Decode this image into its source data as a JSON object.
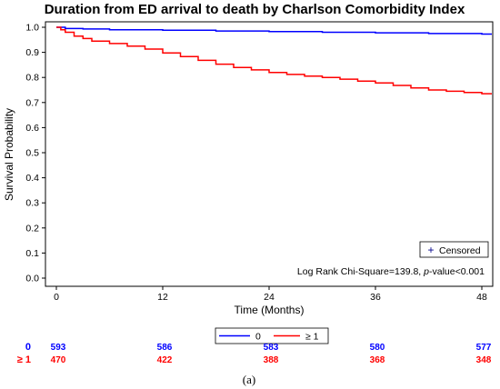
{
  "chart_data": {
    "type": "line",
    "title": "Duration from ED arrival to death by Charlson Comorbidity Index",
    "xlabel": "Time (Months)",
    "ylabel": "Survival Probability",
    "xlim": [
      0,
      48
    ],
    "ylim": [
      0,
      1.0
    ],
    "xticks": [
      "0",
      "12",
      "24",
      "36",
      "48"
    ],
    "yticks": [
      "0.0",
      "0.1",
      "0.2",
      "0.3",
      "0.4",
      "0.5",
      "0.6",
      "0.7",
      "0.8",
      "0.9",
      "1.0"
    ],
    "series": [
      {
        "name": "0",
        "color": "#0000ff",
        "x": [
          0,
          1,
          3,
          6,
          12,
          18,
          24,
          30,
          36,
          42,
          48
        ],
        "values": [
          1.0,
          0.995,
          0.993,
          0.99,
          0.988,
          0.985,
          0.983,
          0.98,
          0.978,
          0.975,
          0.973
        ]
      },
      {
        "name": "≥ 1",
        "color": "#ff0000",
        "x": [
          0,
          0.5,
          1,
          2,
          3,
          4,
          6,
          8,
          10,
          12,
          14,
          16,
          18,
          20,
          22,
          24,
          26,
          28,
          30,
          32,
          34,
          36,
          38,
          40,
          42,
          44,
          46,
          48
        ],
        "values": [
          1.0,
          0.99,
          0.98,
          0.965,
          0.955,
          0.945,
          0.935,
          0.925,
          0.913,
          0.898,
          0.883,
          0.868,
          0.853,
          0.84,
          0.83,
          0.82,
          0.812,
          0.805,
          0.8,
          0.793,
          0.785,
          0.778,
          0.768,
          0.758,
          0.75,
          0.745,
          0.74,
          0.735
        ]
      }
    ],
    "censored_legend": "Censored",
    "censored_symbol": "+",
    "annotation": {
      "prefix": "Log Rank Chi-Square=139.8, ",
      "italic": "p",
      "suffix": "-value<0.001"
    },
    "risk_table": {
      "times": [
        0,
        12,
        24,
        36,
        48
      ],
      "rows": [
        {
          "label": "0",
          "color": "#0000ff",
          "values": [
            "593",
            "586",
            "583",
            "580",
            "577"
          ]
        },
        {
          "label": "≥ 1",
          "color": "#ff0000",
          "values": [
            "470",
            "422",
            "388",
            "368",
            "348"
          ]
        }
      ]
    },
    "legend": [
      "0",
      "≥ 1"
    ],
    "caption": "(a)"
  }
}
